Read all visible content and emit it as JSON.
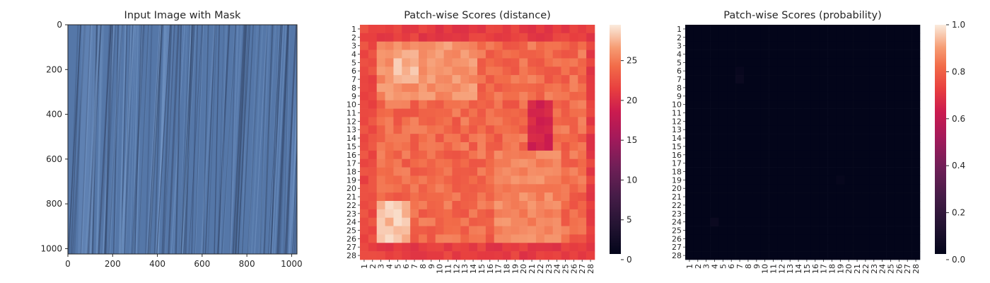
{
  "chart_data": [
    {
      "type": "image",
      "title": "Input Image with Mask",
      "xlim": [
        0,
        1024
      ],
      "ylim": [
        1024,
        0
      ],
      "x_ticks": [
        0,
        200,
        400,
        600,
        800,
        1000
      ],
      "y_ticks": [
        0,
        200,
        400,
        600,
        800,
        1000
      ],
      "image_description_colors": {
        "base": "#5577a8",
        "dark_streak": "#34476a",
        "light_streak": "#7396c6"
      }
    },
    {
      "type": "heatmap",
      "title": "Patch-wise Scores (distance)",
      "rows": 28,
      "cols": 28,
      "row_labels": [
        "1",
        "2",
        "3",
        "4",
        "5",
        "6",
        "7",
        "8",
        "9",
        "10",
        "11",
        "12",
        "13",
        "14",
        "15",
        "16",
        "17",
        "18",
        "19",
        "20",
        "21",
        "22",
        "23",
        "24",
        "25",
        "26",
        "27",
        "28"
      ],
      "col_labels": [
        "1",
        "2",
        "3",
        "4",
        "5",
        "6",
        "7",
        "8",
        "9",
        "10",
        "11",
        "12",
        "13",
        "14",
        "15",
        "16",
        "17",
        "18",
        "19",
        "20",
        "21",
        "22",
        "23",
        "24",
        "25",
        "26",
        "27",
        "28"
      ],
      "colorbar": {
        "min": 0,
        "max": 29.5,
        "ticks": [
          0,
          5,
          10,
          15,
          20,
          25
        ]
      },
      "typical_value": 24,
      "features": [
        {
          "region": "top border (rows 1-2)",
          "value": 21
        },
        {
          "region": "bottom border (rows 27-28)",
          "value": 21
        },
        {
          "region": "left border (cols 1-2)",
          "value": 22
        },
        {
          "region": "right border (col 28)",
          "value": 21
        },
        {
          "region": "rows 3-9, cols 3-14",
          "value": 26
        },
        {
          "region": "rows 4-7, cols 5-7",
          "value": 27.5
        },
        {
          "region": "rows 10-15, cols 21-23",
          "value": 19
        },
        {
          "region": "rows 16-26, cols 17-24",
          "value": 25.5
        },
        {
          "region": "rows 22-26, cols 3-6",
          "value": 28
        }
      ]
    },
    {
      "type": "heatmap",
      "title": "Patch-wise Scores (probability)",
      "rows": 28,
      "cols": 28,
      "row_labels": [
        "1",
        "2",
        "3",
        "4",
        "5",
        "6",
        "7",
        "8",
        "9",
        "10",
        "11",
        "12",
        "13",
        "14",
        "15",
        "16",
        "17",
        "18",
        "19",
        "20",
        "21",
        "22",
        "23",
        "24",
        "25",
        "26",
        "27",
        "28"
      ],
      "col_labels": [
        "1",
        "2",
        "3",
        "4",
        "5",
        "6",
        "7",
        "8",
        "9",
        "10",
        "11",
        "12",
        "13",
        "14",
        "15",
        "16",
        "17",
        "18",
        "19",
        "20",
        "21",
        "22",
        "23",
        "24",
        "25",
        "26",
        "27",
        "28"
      ],
      "colorbar": {
        "min": 0,
        "max": 1,
        "ticks": [
          "0.0",
          "0.2",
          "0.4",
          "0.6",
          "0.8",
          "1.0"
        ]
      },
      "typical_value": 0,
      "features": [
        {
          "row": 6,
          "col": 7,
          "value": 0.02
        },
        {
          "row": 7,
          "col": 7,
          "value": 0.03
        },
        {
          "row": 24,
          "col": 4,
          "value": 0.03
        },
        {
          "row": 19,
          "col": 19,
          "value": 0.015
        }
      ]
    }
  ]
}
